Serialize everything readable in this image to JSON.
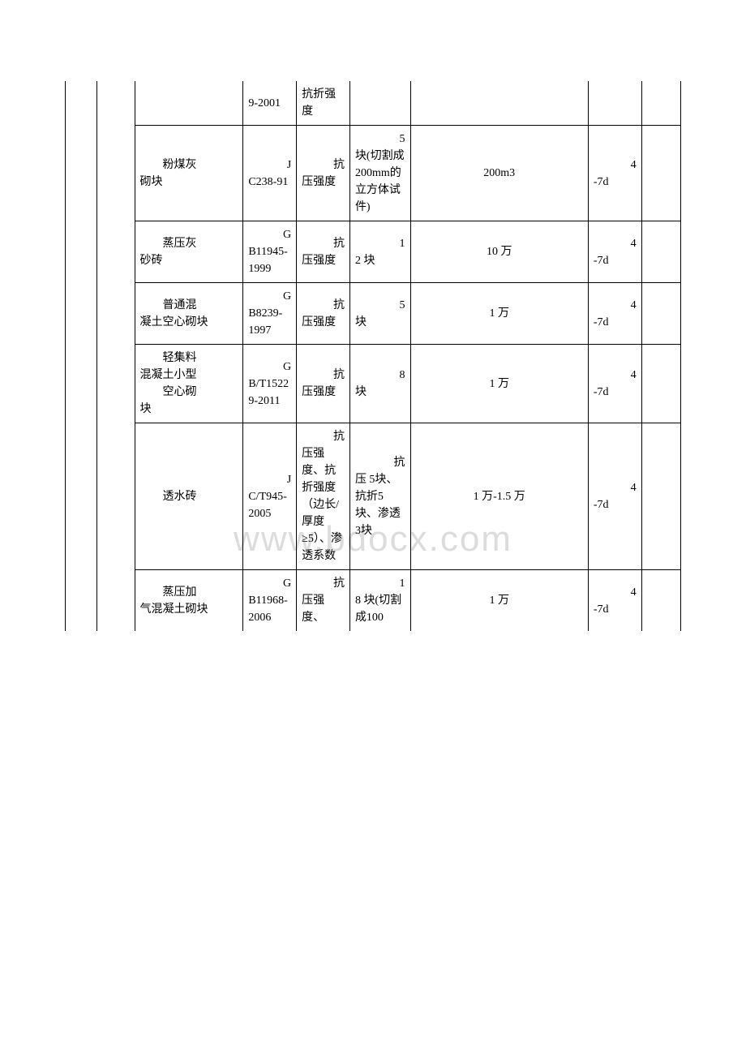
{
  "watermark": "www.bdocx.com",
  "rows": [
    {
      "name": "",
      "standard": "9-2001",
      "test": "抗折强度",
      "sample": "",
      "batch": "",
      "time": "",
      "last": ""
    },
    {
      "name_indent": "粉煤灰",
      "name_rest": "砌块",
      "standard_pre": "J",
      "standard": "C238-91",
      "test_pre": "抗",
      "test": "压强度",
      "sample_pre": "5",
      "sample": "块(切割成200mm的立方体试件)",
      "batch": "200m3",
      "time_pre": "4",
      "time": "-7d",
      "last": ""
    },
    {
      "name_indent": "蒸压灰",
      "name_rest": "砂砖",
      "standard_pre": "G",
      "standard": "B11945-1999",
      "test_pre": "抗",
      "test": "压强度",
      "sample_pre": "1",
      "sample": "2 块",
      "batch": "10 万",
      "time_pre": "4",
      "time": "-7d",
      "last": ""
    },
    {
      "name_indent": "普通混",
      "name_rest": "凝土空心砌块",
      "standard_pre": "G",
      "standard": "B8239-1997",
      "test_pre": "抗",
      "test": "压强度",
      "sample_pre": "5",
      "sample": "块",
      "batch": "1 万",
      "time_pre": "4",
      "time": "-7d",
      "last": ""
    },
    {
      "name_indent": "轻集料",
      "name_rest1": "混凝土小型",
      "name_indent2": "空心砌",
      "name_rest2": "块",
      "standard_pre": "G",
      "standard": "B/T15229-2011",
      "test_pre": "抗",
      "test": "压强度",
      "sample_pre": "8",
      "sample": "块",
      "batch": "1 万",
      "time_pre": "4",
      "time": "-7d",
      "last": ""
    },
    {
      "name_indent": "透水砖",
      "name_rest": "",
      "standard_pre": "J",
      "standard": "C/T945-2005",
      "test_pre": "抗",
      "test": "压强度、抗折强度（边长/厚度≥5）、渗透系数",
      "sample_pre": "抗",
      "sample": "压 5块、抗折5 块、渗透 3块",
      "batch": "1 万-1.5 万",
      "time_pre": "4",
      "time": "-7d",
      "last": ""
    },
    {
      "name_indent": "蒸压加",
      "name_rest": "气混凝土砌块",
      "standard_pre": "G",
      "standard": "B11968-2006",
      "test_pre": "抗",
      "test": "压强度、",
      "sample_pre": "1",
      "sample": "8 块(切割成100",
      "batch": "1 万",
      "time_pre": "4",
      "time": "-7d",
      "last": ""
    }
  ]
}
